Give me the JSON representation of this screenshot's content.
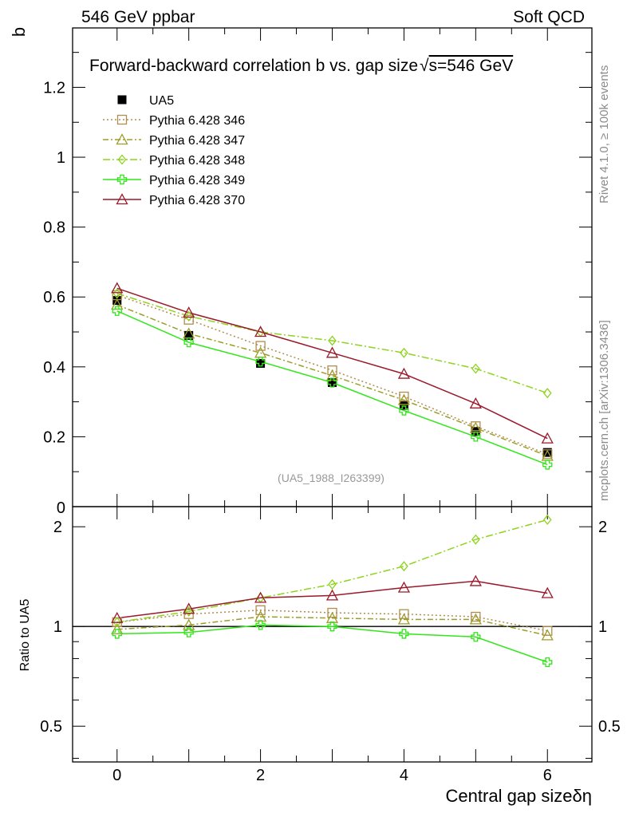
{
  "header": {
    "left": "546 GeV ppbar",
    "right": "Soft QCD"
  },
  "side_text": {
    "rivet": "Rivet 4.1.0, ≥ 100k events",
    "mcplots": "mcplots.cern.ch [arXiv:1306.3436]"
  },
  "chart_data": {
    "type": "line",
    "title": "Forward-backward correlation b  vs. gap size",
    "title_suffix": "s=546 GeV",
    "title_sqrt": "√",
    "ylabel": "b",
    "xlabel": "Central gap size",
    "xlabel_symbol": "δη",
    "ratio_ylabel": "Ratio to UA5",
    "watermark": "(UA5_1988_I263399)",
    "xlim": [
      -0.62,
      6.62
    ],
    "ylim": [
      0,
      1.37
    ],
    "ratio_ylim": [
      0.39,
      2.3
    ],
    "x_ticks": [
      "0",
      "2",
      "4",
      "6"
    ],
    "y_ticks": [
      "0.2",
      "0.4",
      "0.6",
      "0.8",
      "1",
      "1.2"
    ],
    "y_zero_label": "0",
    "ratio_ticks": [
      "0.5",
      "1",
      "2"
    ],
    "x": [
      0,
      1,
      2,
      3,
      4,
      5,
      6
    ],
    "data": {
      "name": "UA5",
      "color": "#000000",
      "values": [
        0.59,
        0.49,
        0.41,
        0.355,
        0.29,
        0.215,
        0.155
      ]
    },
    "series": [
      {
        "name": "Pythia 6.428 346",
        "color": "#b08d4e",
        "dash": "2,3",
        "marker": "square",
        "values": [
          0.605,
          0.535,
          0.46,
          0.39,
          0.315,
          0.23,
          0.15
        ],
        "ratio": [
          1.03,
          1.09,
          1.12,
          1.1,
          1.09,
          1.07,
          0.97
        ]
      },
      {
        "name": "Pythia 6.428 347",
        "color": "#9d9d28",
        "dash": "7,3,2,3",
        "marker": "triangle",
        "values": [
          0.578,
          0.495,
          0.44,
          0.375,
          0.305,
          0.225,
          0.145
        ],
        "ratio": [
          0.98,
          1.01,
          1.07,
          1.06,
          1.05,
          1.05,
          0.94
        ]
      },
      {
        "name": "Pythia 6.428 348",
        "color": "#8ed41e",
        "dash": "9,3,2,3",
        "marker": "diamond",
        "values": [
          0.61,
          0.545,
          0.5,
          0.475,
          0.44,
          0.395,
          0.325
        ],
        "ratio": [
          1.03,
          1.11,
          1.22,
          1.34,
          1.52,
          1.83,
          2.1
        ]
      },
      {
        "name": "Pythia 6.428 349",
        "color": "#33e61a",
        "dash": "",
        "marker": "cross",
        "values": [
          0.56,
          0.47,
          0.415,
          0.355,
          0.275,
          0.2,
          0.12
        ],
        "ratio": [
          0.95,
          0.96,
          1.01,
          1.0,
          0.95,
          0.93,
          0.78
        ]
      },
      {
        "name": "Pythia 6.428 370",
        "color": "#9a1a2c",
        "dash": "",
        "marker": "triangle",
        "values": [
          0.625,
          0.555,
          0.5,
          0.44,
          0.38,
          0.295,
          0.195
        ],
        "ratio": [
          1.06,
          1.13,
          1.22,
          1.24,
          1.31,
          1.37,
          1.26
        ]
      }
    ]
  }
}
